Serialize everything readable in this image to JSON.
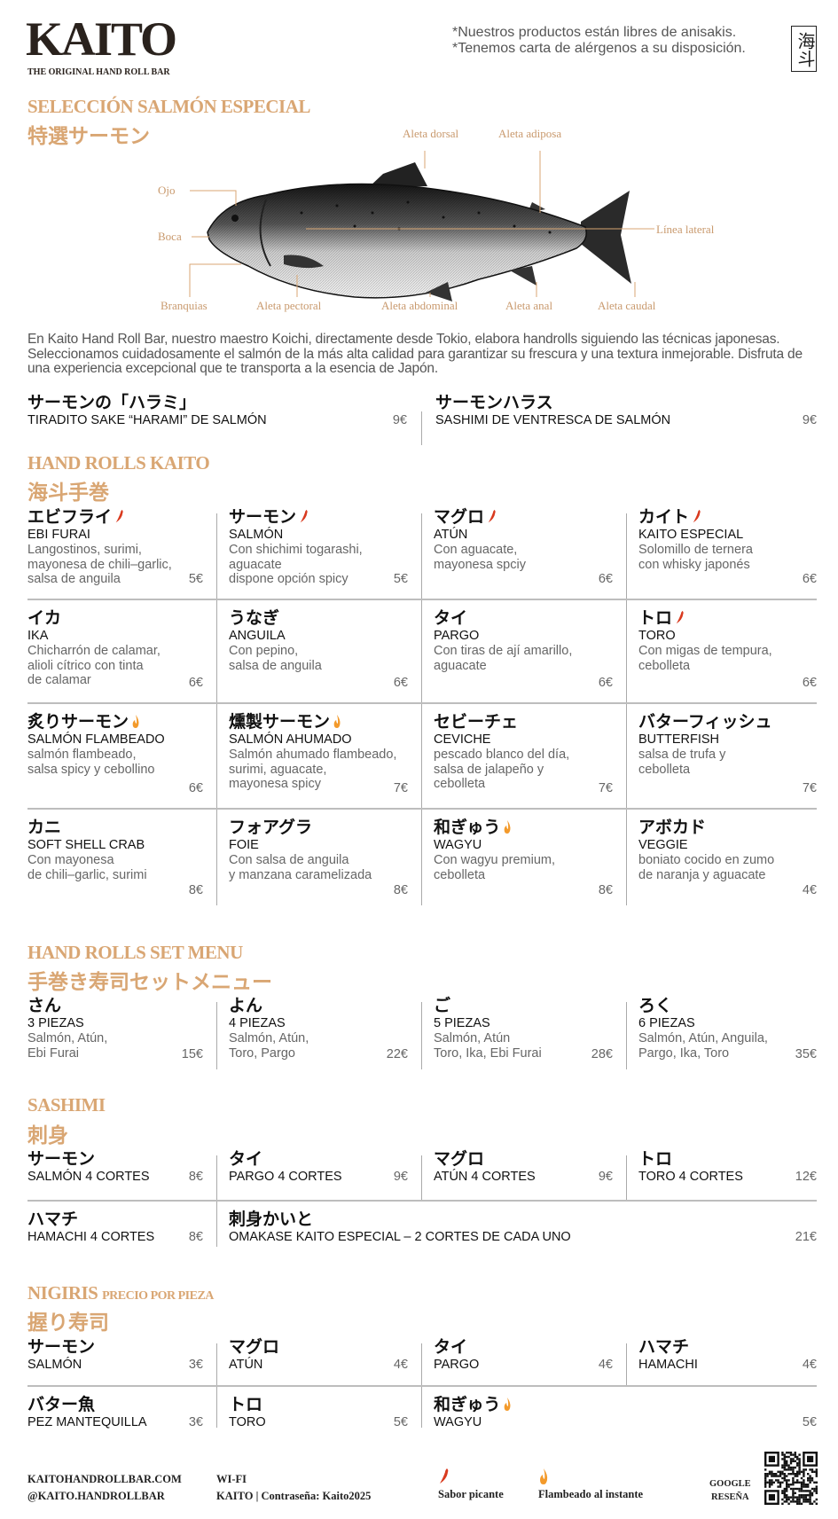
{
  "header": {
    "logo": "KAITO",
    "tagline": "THE ORIGINAL HAND ROLL BAR",
    "notes": [
      "*Nuestros productos están libres de anisakis.",
      "*Tenemos carta de alérgenos a su disposición."
    ],
    "seal": "海斗"
  },
  "colors": {
    "accent": "#d9a673",
    "chili": "#d93a1f",
    "flame": "#f39a2b"
  },
  "salmon_section": {
    "title": "SELECCIÓN SALMÓN ESPECIAL",
    "title_jp": "特選サーモン",
    "fish_labels": {
      "dorsal": "Aleta dorsal",
      "adiposa": "Aleta adiposa",
      "ojo": "Ojo",
      "boca": "Boca",
      "lateral": "Línea lateral",
      "branquias": "Branquias",
      "pectoral": "Aleta pectoral",
      "abdominal": "Aleta abdominal",
      "anal": "Aleta anal",
      "caudal": "Aleta caudal"
    },
    "paragraph": "En Kaito Hand Roll Bar, nuestro maestro Koichi, directamente desde Tokio, elabora handrolls siguiendo las técnicas japonesas. Seleccionamos cuidadosamente el salmón de la más alta calidad para garantizar su frescura y una textura inmejorable. Disfruta de una experiencia excepcional que te transporta a la esencia de Japón.",
    "items": [
      {
        "jp": "サーモンの「ハラミ」",
        "name": "TIRADITO SAKE “HARAMI” DE SALMÓN",
        "price": "9€"
      },
      {
        "jp": "サーモンハラス",
        "name": "SASHIMI DE VENTRESCA DE SALMÓN",
        "price": "9€"
      }
    ]
  },
  "hand_rolls": {
    "title": "HAND ROLLS KAITO",
    "title_jp": "海斗手巻",
    "rows": [
      [
        {
          "jp": "エビフライ",
          "icon": "chili-icon",
          "name": "EBI FURAI",
          "desc": [
            "Langostinos, surimi,",
            "mayonesa de chili–garlic,",
            "salsa de anguila"
          ],
          "price": "5€"
        },
        {
          "jp": "サーモン",
          "icon": "chili-icon",
          "name": "SALMÓN",
          "desc": [
            "Con shichimi togarashi,",
            "aguacate",
            "dispone opción spicy"
          ],
          "price": "5€"
        },
        {
          "jp": "マグロ",
          "icon": "chili-icon",
          "name": "ATÚN",
          "desc": [
            "Con aguacate,",
            "mayonesa spciy"
          ],
          "price": "6€"
        },
        {
          "jp": "カイト",
          "icon": "chili-icon",
          "name": "KAITO ESPECIAL",
          "desc": [
            "Solomillo de ternera",
            "con whisky japonés"
          ],
          "price": "6€"
        }
      ],
      [
        {
          "jp": "イカ",
          "name": "IKA",
          "desc": [
            "Chicharrón de calamar,",
            "alioli cítrico con tinta",
            "de calamar"
          ],
          "price": "6€"
        },
        {
          "jp": "うなぎ",
          "name": "ANGUILA",
          "desc": [
            "Con pepino,",
            "salsa de anguila"
          ],
          "price": "6€"
        },
        {
          "jp": "タイ",
          "name": "PARGO",
          "desc": [
            "Con tiras de ají amarillo,",
            "aguacate"
          ],
          "price": "6€"
        },
        {
          "jp": "トロ",
          "icon": "chili-icon",
          "name": "TORO",
          "desc": [
            "Con migas de tempura,",
            "cebolleta"
          ],
          "price": "6€"
        }
      ],
      [
        {
          "jp": "炙りサーモン",
          "icon": "flame-icon",
          "name": "SALMÓN FLAMBEADO",
          "desc": [
            "salmón flambeado,",
            "salsa spicy y cebollino"
          ],
          "price": "6€"
        },
        {
          "jp": "燻製サーモン",
          "icon": "flame-icon",
          "name": "SALMÓN AHUMADO",
          "desc": [
            "Salmón ahumado flambeado,",
            "surimi, aguacate,",
            "mayonesa spicy"
          ],
          "price": "7€"
        },
        {
          "jp": "セビーチェ",
          "name": "CEVICHE",
          "desc": [
            "pescado blanco del día,",
            "salsa de jalapeño y",
            "cebolleta"
          ],
          "price": "7€"
        },
        {
          "jp": "バターフィッシュ",
          "name": "BUTTERFISH",
          "desc": [
            "salsa de trufa y",
            "cebolleta"
          ],
          "price": "7€"
        }
      ],
      [
        {
          "jp": "カニ",
          "name": "SOFT SHELL CRAB",
          "desc": [
            "Con mayonesa",
            "de chili–garlic, surimi"
          ],
          "price": "8€"
        },
        {
          "jp": "フォアグラ",
          "name": "FOIE",
          "desc": [
            "Con salsa de anguila",
            "y manzana caramelizada"
          ],
          "price": "8€"
        },
        {
          "jp": "和ぎゅう",
          "icon": "flame-icon",
          "name": "WAGYU",
          "desc": [
            "Con wagyu premium,",
            "cebolleta"
          ],
          "price": "8€"
        },
        {
          "jp": "アボカド",
          "name": "VEGGIE",
          "desc": [
            "boniato cocido en zumo",
            "de naranja y aguacate"
          ],
          "price": "4€"
        }
      ]
    ]
  },
  "set_menu": {
    "title": "HAND ROLLS SET MENU",
    "title_jp": "手巻き寿司セットメニュー",
    "rows": [
      [
        {
          "jp": "さん",
          "name": "3 PIEZAS",
          "desc": [
            "Salmón, Atún,",
            "Ebi Furai"
          ],
          "price": "15€"
        },
        {
          "jp": "よん",
          "name": "4 PIEZAS",
          "desc": [
            "Salmón, Atún,",
            "Toro, Pargo"
          ],
          "price": "22€"
        },
        {
          "jp": "ご",
          "name": "5 PIEZAS",
          "desc": [
            "Salmón, Atún",
            "Toro, Ika, Ebi Furai"
          ],
          "price": "28€"
        },
        {
          "jp": "ろく",
          "name": "6 PIEZAS",
          "desc": [
            "Salmón, Atún, Anguila,",
            "Pargo, Ika, Toro"
          ],
          "price": "35€"
        }
      ]
    ]
  },
  "sashimi": {
    "title": "SASHIMI",
    "title_jp": "刺身",
    "rows": [
      [
        {
          "jp": "サーモン",
          "name": "SALMÓN 4 CORTES",
          "price": "8€"
        },
        {
          "jp": "タイ",
          "name": "PARGO 4 CORTES",
          "price": "9€"
        },
        {
          "jp": "マグロ",
          "name": "ATÚN 4 CORTES",
          "price": "9€"
        },
        {
          "jp": "トロ",
          "name": "TORO 4 CORTES",
          "price": "12€"
        }
      ],
      [
        {
          "jp": "ハマチ",
          "name": "HAMACHI 4 CORTES",
          "price": "8€"
        },
        {
          "jp": "刺身かいと",
          "name": "OMAKASE KAITO ESPECIAL – 2 CORTES DE CADA UNO",
          "price": "21€"
        }
      ]
    ]
  },
  "nigiris": {
    "title": "NIGIRIS",
    "subtitle": "PRECIO POR PIEZA",
    "title_jp": "握り寿司",
    "rows": [
      [
        {
          "jp": "サーモン",
          "name": "SALMÓN",
          "price": "3€"
        },
        {
          "jp": "マグロ",
          "name": "ATÚN",
          "price": "4€"
        },
        {
          "jp": "タイ",
          "name": "PARGO",
          "price": "4€"
        },
        {
          "jp": "ハマチ",
          "name": "HAMACHI",
          "price": "4€"
        }
      ],
      [
        {
          "jp": "バター魚",
          "name": "PEZ MANTEQUILLA",
          "price": "3€"
        },
        {
          "jp": "トロ",
          "name": "TORO",
          "price": "5€"
        },
        {
          "jp": "和ぎゅう",
          "icon": "flame-icon",
          "name": "WAGYU",
          "price": "5€"
        }
      ]
    ]
  },
  "footer": {
    "website": "KAITOHANDROLLBAR.COM",
    "instagram": "@KAITO.HANDROLLBAR",
    "wifi_label": "WI-FI",
    "wifi_value": "KAITO | Contraseña: Kaito2025",
    "legend_spicy": "Sabor picante",
    "legend_flame": "Flambeado al instante",
    "google_label": "GOOGLE",
    "review_label": "RESEÑA"
  }
}
